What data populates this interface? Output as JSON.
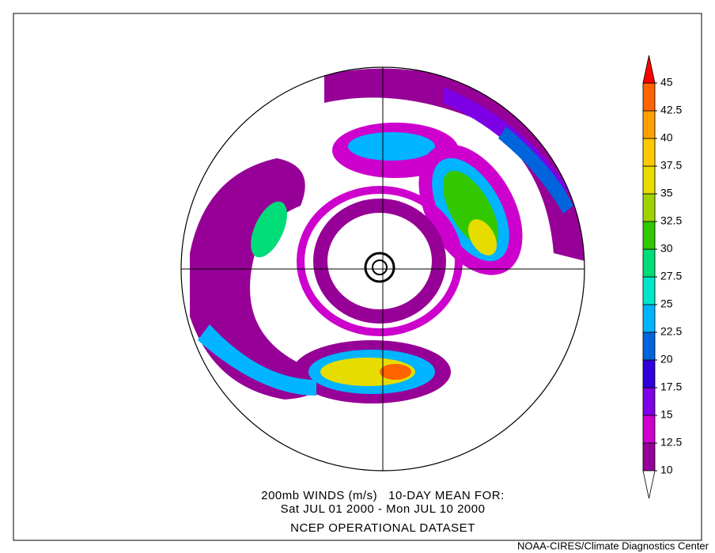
{
  "caption": {
    "line1": "200mb WINDS (m/s)   10-DAY MEAN FOR:",
    "line2": "Sat JUL 01 2000 - Mon JUL 10 2000",
    "line3": "NCEP OPERATIONAL DATASET"
  },
  "credit": "NOAA-CIRES/Climate Diagnostics Center",
  "colorbar": {
    "ticks": [
      10,
      12.5,
      15,
      17.5,
      20,
      22.5,
      25,
      27.5,
      30,
      32.5,
      35,
      37.5,
      40,
      42.5,
      45
    ],
    "colors": [
      "#960096",
      "#cd00cd",
      "#7d00e6",
      "#2d00dc",
      "#0064dc",
      "#00b4ff",
      "#00e6c8",
      "#00dc78",
      "#32c800",
      "#a0d200",
      "#e6dc00",
      "#ffc800",
      "#ffa000",
      "#ff6400",
      "#ff0000"
    ]
  }
}
